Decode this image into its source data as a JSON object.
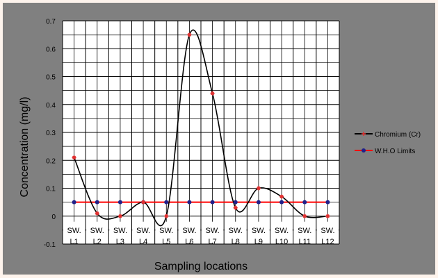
{
  "chart_data": {
    "type": "line",
    "title": "",
    "xlabel": "Sampling locations",
    "ylabel": "Concentration (mg/l)",
    "ylim": [
      -0.1,
      0.7
    ],
    "y_ticks": [
      "-0.1",
      "0",
      "0.1",
      "0.2",
      "0.3",
      "0.4",
      "0.5",
      "0.6",
      "0.7"
    ],
    "y_tick_values": [
      -0.1,
      0,
      0.1,
      0.2,
      0.3,
      0.4,
      0.5,
      0.6,
      0.7
    ],
    "categories": [
      [
        "SW.",
        "L1"
      ],
      [
        "SW.",
        "L2"
      ],
      [
        "SW.",
        "L3"
      ],
      [
        "SW.",
        "L4"
      ],
      [
        "SW.",
        "L5"
      ],
      [
        "SW.",
        "L6"
      ],
      [
        "SW.",
        "L7"
      ],
      [
        "SW.",
        "L8"
      ],
      [
        "SW.",
        "L9"
      ],
      [
        "SW.",
        "L10"
      ],
      [
        "SW.",
        "L11"
      ],
      [
        "SW.",
        "L12"
      ]
    ],
    "grid": true,
    "legend_position": "right",
    "background": "#808080",
    "series": [
      {
        "name": "Chromium (Cr)",
        "line_color": "#000000",
        "marker_color": "#e03030",
        "marker": "star",
        "smooth": true,
        "values": [
          0.21,
          0.01,
          0.0,
          0.05,
          0.0,
          0.65,
          0.44,
          0.03,
          0.1,
          0.07,
          0.0,
          0.0
        ]
      },
      {
        "name": "W.H.O Limits",
        "line_color": "#ff0000",
        "marker_color": "#20208a",
        "marker": "circle",
        "smooth": false,
        "values": [
          0.05,
          0.05,
          0.05,
          0.05,
          0.05,
          0.05,
          0.05,
          0.05,
          0.05,
          0.05,
          0.05,
          0.05
        ]
      }
    ]
  }
}
